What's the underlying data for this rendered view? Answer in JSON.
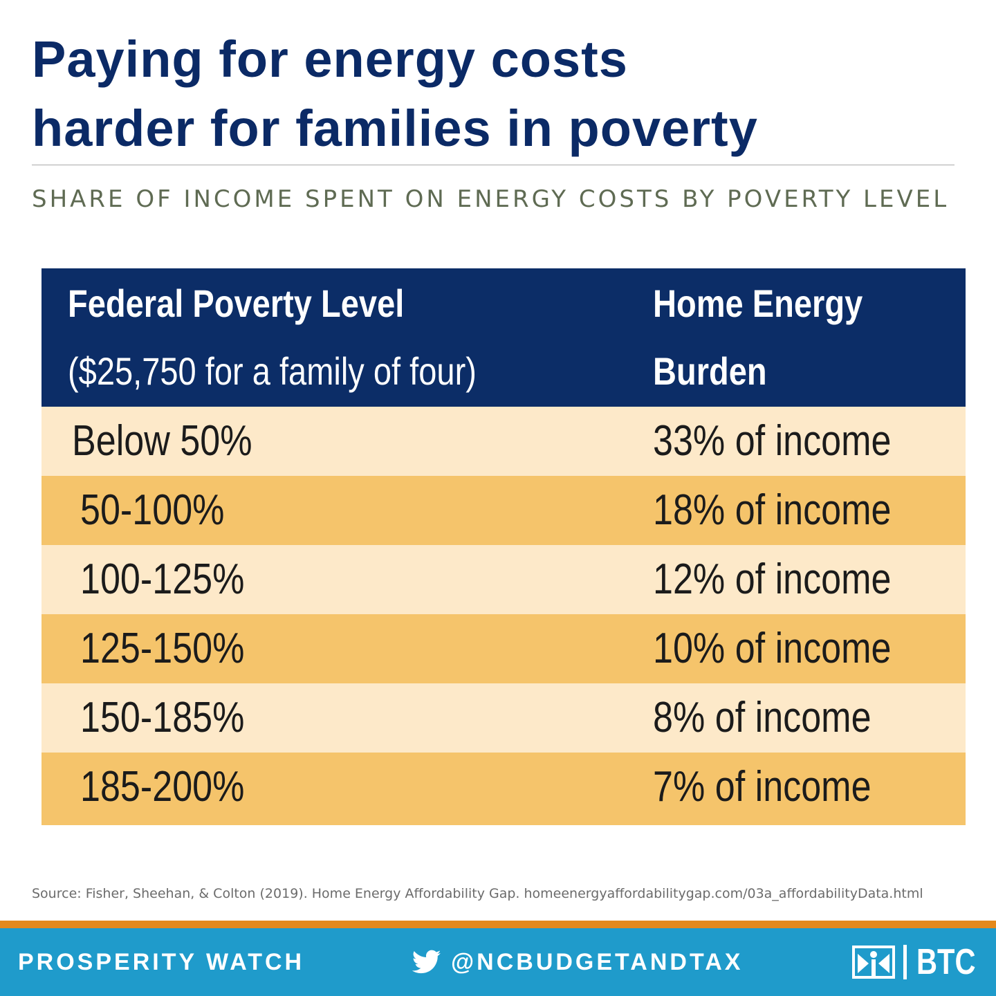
{
  "title": {
    "line1": "Paying for energy costs",
    "line2": "harder for families in poverty"
  },
  "subtitle": "SHARE OF INCOME SPENT ON ENERGY COSTS BY POVERTY LEVEL",
  "chart_data": {
    "type": "table",
    "columns": [
      {
        "header_line1": "Federal Poverty Level",
        "header_line2": "($25,750  for a family of four)"
      },
      {
        "header_line1": "Home Energy",
        "header_line2": "Burden"
      }
    ],
    "rows": [
      {
        "level": "Below 50%",
        "burden": "33% of income",
        "burden_pct": 33
      },
      {
        "level": "50-100%",
        "burden": "18% of income",
        "burden_pct": 18
      },
      {
        "level": "100-125%",
        "burden": "12% of income",
        "burden_pct": 12
      },
      {
        "level": "125-150%",
        "burden": "10% of income",
        "burden_pct": 10
      },
      {
        "level": "150-185%",
        "burden": "8% of income",
        "burden_pct": 8
      },
      {
        "level": "185-200%",
        "burden": "7% of income",
        "burden_pct": 7
      }
    ]
  },
  "source": "Source: Fisher, Sheehan, & Colton (2019).  Home Energy Affordability Gap. homeenergyaffordabilitygap.com/03a_affordabilityData.html",
  "footer": {
    "left": "PROSPERITY WATCH",
    "handle": "@NCBUDGETANDTAX",
    "org": "BTC"
  },
  "colors": {
    "title": "#0b2a66",
    "header_bg": "#0c2d67",
    "row_light": "#fde9c9",
    "row_dark": "#f5c46b",
    "footer_bg": "#1f9bcb",
    "footer_stripe": "#e3891d"
  },
  "icons": {
    "social": "twitter-bird-icon",
    "logo": "btc-logo-icon"
  }
}
